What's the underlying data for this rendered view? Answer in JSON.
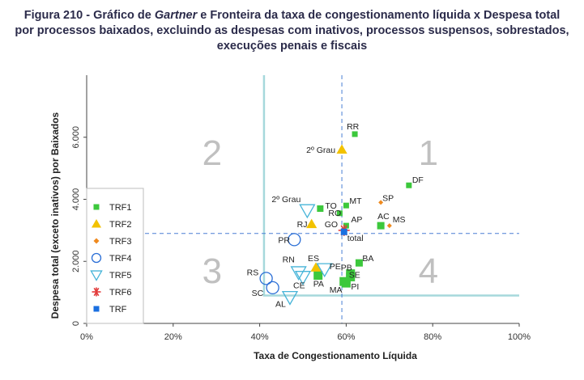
{
  "title": {
    "line1_prefix": "Figura 210 - Gráfico de ",
    "line1_italic": "Gartner",
    "line1_suffix": " e Fronteira da taxa de congestionamento líquida x Despesa total",
    "line2": "por processos baixados, excluindo as despesas com inativos, processos suspensos, sobrestados,",
    "line3": "execuções penais e fiscais"
  },
  "chart_data": {
    "type": "scatter",
    "xlabel": "Taxa de Congestionamento Líquida",
    "ylabel": "Despesa total (exceto inativos) por Baixados",
    "xlim": [
      0,
      1
    ],
    "ylim": [
      0,
      8000
    ],
    "x_ticks": [
      0,
      0.2,
      0.4,
      0.6,
      0.8,
      1.0
    ],
    "x_tick_labels": [
      "0%",
      "20%",
      "40%",
      "60%",
      "80%",
      "100%"
    ],
    "y_ticks": [
      0,
      2000,
      4000,
      6000
    ],
    "y_tick_labels": [
      "0",
      "2.000",
      "4.000",
      "6.000"
    ],
    "grid": false,
    "legend_position": "left",
    "quadrant_numbers": [
      "1",
      "2",
      "3",
      "4"
    ],
    "reference_lines": {
      "vertical_x": 0.59,
      "horizontal_y": 2900,
      "color": "#4a7fd4",
      "style": "dashed"
    },
    "frontier": {
      "color": "#a6d8dc",
      "points": [
        [
          0.41,
          8000
        ],
        [
          0.41,
          900
        ],
        [
          1.0,
          900
        ]
      ]
    },
    "legend": [
      {
        "name": "TRF1",
        "marker": "square",
        "color": "#3cc83c"
      },
      {
        "name": "TRF2",
        "marker": "triangle",
        "color": "#f2c200"
      },
      {
        "name": "TRF3",
        "marker": "diamond",
        "color": "#ef8a1e"
      },
      {
        "name": "TRF4",
        "marker": "circle-open",
        "color": "#2a6ed6"
      },
      {
        "name": "TRF5",
        "marker": "triangle-down-open",
        "color": "#46b4d8"
      },
      {
        "name": "TRF6",
        "marker": "asterisk",
        "color": "#e23b3b"
      },
      {
        "name": "TRF",
        "marker": "square",
        "color": "#1a6fe0"
      }
    ],
    "series": [
      {
        "name": "TRF1",
        "points": [
          {
            "label": "RR",
            "x": 0.62,
            "y": 6100
          },
          {
            "label": "DF",
            "x": 0.745,
            "y": 4450
          },
          {
            "label": "TO",
            "x": 0.54,
            "y": 3700
          },
          {
            "label": "MT",
            "x": 0.6,
            "y": 3800
          },
          {
            "label": "RO",
            "x": 0.585,
            "y": 3550
          },
          {
            "label": "AP",
            "x": 0.6,
            "y": 3150
          },
          {
            "label": "AC",
            "x": 0.68,
            "y": 3150
          },
          {
            "label": "BA",
            "x": 0.63,
            "y": 1950
          },
          {
            "label": "PB",
            "x": 0.61,
            "y": 1600
          },
          {
            "label": "SE",
            "x": 0.61,
            "y": 1500
          },
          {
            "label": "PI",
            "x": 0.6,
            "y": 1300
          },
          {
            "label": "MA",
            "x": 0.595,
            "y": 1350
          },
          {
            "label": "PA",
            "x": 0.535,
            "y": 1550
          }
        ]
      },
      {
        "name": "TRF2",
        "points": [
          {
            "label": "2º Grau",
            "x": 0.59,
            "y": 5600
          },
          {
            "label": "RJ",
            "x": 0.52,
            "y": 3200
          },
          {
            "label": "ES",
            "x": 0.53,
            "y": 1800
          }
        ]
      },
      {
        "name": "TRF3",
        "points": [
          {
            "label": "SP",
            "x": 0.68,
            "y": 3900
          },
          {
            "label": "MS",
            "x": 0.7,
            "y": 3150
          }
        ]
      },
      {
        "name": "TRF4",
        "points": [
          {
            "label": "PR",
            "x": 0.48,
            "y": 2700
          },
          {
            "label": "RS",
            "x": 0.415,
            "y": 1450
          },
          {
            "label": "SC",
            "x": 0.43,
            "y": 1150
          }
        ]
      },
      {
        "name": "TRF5",
        "points": [
          {
            "label": "2º Grau",
            "x": 0.51,
            "y": 3650
          },
          {
            "label": "RN",
            "x": 0.49,
            "y": 1650
          },
          {
            "label": "PE",
            "x": 0.55,
            "y": 1750
          },
          {
            "label": "CE",
            "x": 0.5,
            "y": 1500
          },
          {
            "label": "AL",
            "x": 0.47,
            "y": 850
          }
        ]
      },
      {
        "name": "TRF6",
        "points": [
          {
            "label": "GO",
            "x": 0.595,
            "y": 3000
          }
        ]
      },
      {
        "name": "TRF",
        "points": [
          {
            "label": "total",
            "x": 0.595,
            "y": 2950
          }
        ]
      }
    ]
  }
}
